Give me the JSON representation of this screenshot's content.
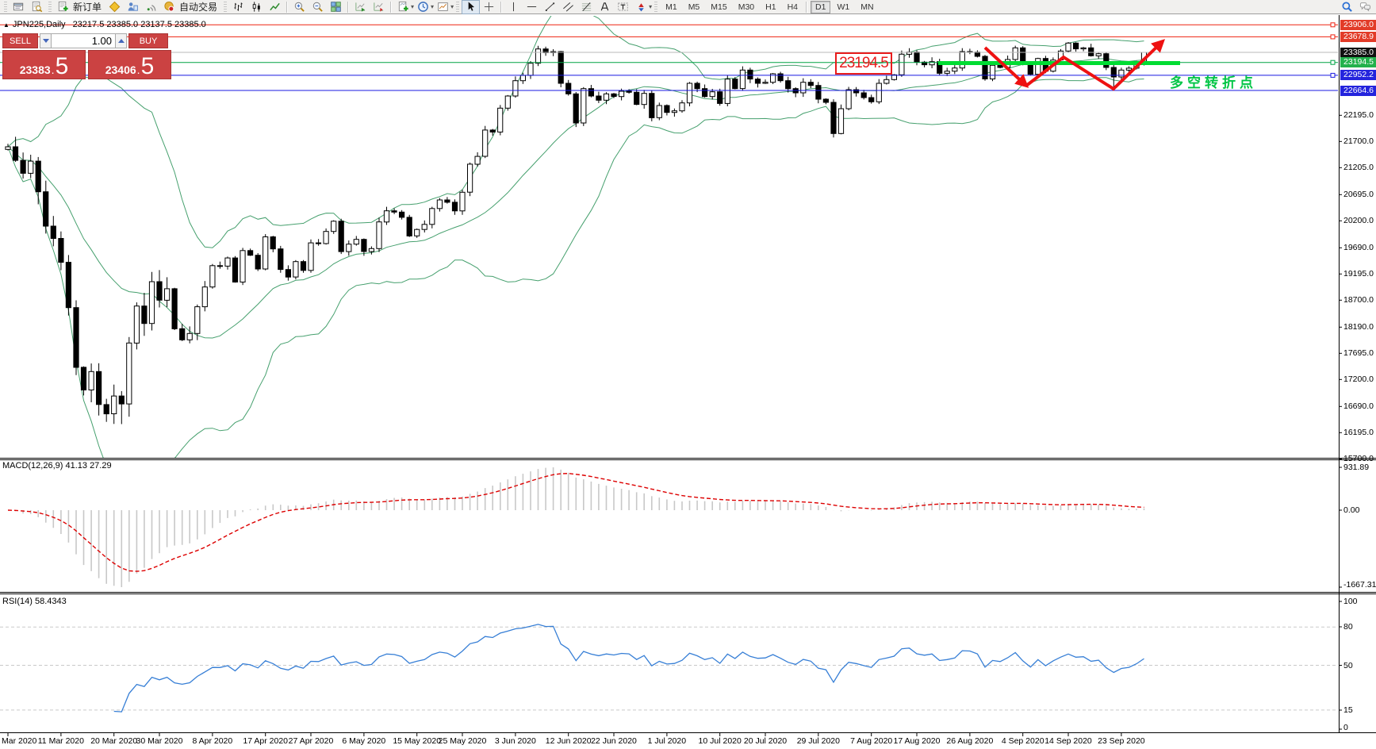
{
  "toolbar": {
    "items": [
      {
        "type": "grip"
      },
      {
        "type": "btn",
        "icon": "chart-list"
      },
      {
        "type": "btn",
        "icon": "print-preview"
      },
      {
        "type": "grip"
      },
      {
        "type": "btn",
        "icon": "new-order",
        "label": "新订单"
      },
      {
        "type": "btn",
        "icon": "metaeditor"
      },
      {
        "type": "btn",
        "icon": "terminal"
      },
      {
        "type": "btn",
        "icon": "signals"
      },
      {
        "type": "btn",
        "icon": "autotrading",
        "label": "自动交易"
      },
      {
        "type": "grip"
      },
      {
        "type": "btn",
        "icon": "bars-chart"
      },
      {
        "type": "btn",
        "icon": "candles-chart"
      },
      {
        "type": "btn",
        "icon": "line-chart"
      },
      {
        "type": "sep"
      },
      {
        "type": "btn",
        "icon": "zoom-in"
      },
      {
        "type": "btn",
        "icon": "zoom-out"
      },
      {
        "type": "btn",
        "icon": "tile-windows"
      },
      {
        "type": "sep"
      },
      {
        "type": "btn",
        "icon": "auto-scroll"
      },
      {
        "type": "btn",
        "icon": "chart-shift"
      },
      {
        "type": "sep"
      },
      {
        "type": "btn",
        "icon": "new-chart",
        "dropdown": true
      },
      {
        "type": "btn",
        "icon": "period",
        "dropdown": true
      },
      {
        "type": "btn",
        "icon": "templates",
        "dropdown": true
      },
      {
        "type": "grip"
      },
      {
        "type": "btn",
        "icon": "cursor",
        "active": true
      },
      {
        "type": "btn",
        "icon": "crosshair"
      },
      {
        "type": "sep"
      },
      {
        "type": "btn",
        "icon": "vline"
      },
      {
        "type": "btn",
        "icon": "hline"
      },
      {
        "type": "btn",
        "icon": "trendline"
      },
      {
        "type": "btn",
        "icon": "channel"
      },
      {
        "type": "btn",
        "icon": "fibonacci"
      },
      {
        "type": "btn",
        "icon": "text"
      },
      {
        "type": "btn",
        "icon": "text-label"
      },
      {
        "type": "btn",
        "icon": "arrows",
        "dropdown": true
      },
      {
        "type": "grip"
      },
      {
        "type": "timeframes"
      },
      {
        "type": "spacer"
      },
      {
        "type": "btn",
        "icon": "search"
      },
      {
        "type": "btn",
        "icon": "chat"
      }
    ],
    "timeframes": [
      "M1",
      "M5",
      "M15",
      "M30",
      "H1",
      "H4",
      "D1",
      "W1",
      "MN"
    ],
    "timeframe_separator_before": "D1",
    "selected_timeframe": "D1"
  },
  "chart_header": {
    "collapse_glyph": "▲",
    "title": "JPN225,Daily",
    "ohlc": "23217.5 23385.0 23137.5 23385.0"
  },
  "trade_panel": {
    "sell_label": "SELL",
    "buy_label": "BUY",
    "volume": "1.00",
    "sell_price_main": "23383",
    "sell_price_frac": "5",
    "buy_price_main": "23406",
    "buy_price_frac": "5",
    "accent_color": "#cb4242"
  },
  "annotations": {
    "price_box_label": "23194.5",
    "turning_point_text": "多空转折点",
    "turning_point_color": "#00c545",
    "trend_segment_color": "#00dc32",
    "zigzag_color": "#ee1111"
  },
  "macd_panel": {
    "name": "MACD(12,26,9)",
    "values": "41.13 27.29",
    "scale": [
      "931.89",
      "0.00",
      "-1667.31"
    ],
    "histogram_color": "#c8c8c8",
    "signal_color": "#dd0000"
  },
  "rsi_panel": {
    "name": "RSI(14)",
    "value": "58.4343",
    "scale": [
      "100",
      "80",
      "50",
      "15",
      "0"
    ],
    "line_color": "#377fd6"
  },
  "chart_data": {
    "type": "candlestick",
    "symbol": "JPN225",
    "timeframe": "Daily",
    "bollinger_color": "#46a06e",
    "first_open": 21550,
    "closes": [
      21600,
      21344,
      21100,
      21329,
      20750,
      20100,
      19867,
      19416,
      18560,
      17431,
      17002,
      17350,
      16727,
      16552,
      16888,
      16738,
      17890,
      18590,
      18260,
      19050,
      18700,
      18917,
      18160,
      17950,
      18070,
      18576,
      18950,
      19353,
      19345,
      19499,
      19043,
      19638,
      19550,
      19290,
      19897,
      19669,
      19280,
      19138,
      19429,
      19262,
      19783,
      19771,
      20000,
      20193,
      19619,
      19760,
      19850,
      19620,
      19675,
      20179,
      20390,
      20366,
      20267,
      19915,
      20037,
      20133,
      20433,
      20595,
      20552,
      20388,
      20741,
      21271,
      21419,
      21916,
      21878,
      22330,
      22560,
      22850,
      22950,
      23180,
      23450,
      23380,
      23400,
      22800,
      22600,
      22050,
      22700,
      22560,
      22480,
      22600,
      22550,
      22650,
      22630,
      22400,
      22610,
      22150,
      22380,
      22250,
      22280,
      22430,
      22800,
      22700,
      22550,
      22640,
      22420,
      22880,
      22700,
      23050,
      22880,
      22800,
      22820,
      22980,
      22850,
      22700,
      22620,
      22820,
      22760,
      22500,
      22440,
      21850,
      22320,
      22680,
      22620,
      22530,
      22450,
      22800,
      22870,
      22960,
      23350,
      23390,
      23200,
      23150,
      23210,
      22990,
      23030,
      23090,
      23400,
      23390,
      23310,
      22882,
      23140,
      23100,
      23250,
      23470,
      23200,
      22970,
      23270,
      23030,
      23240,
      23410,
      23560,
      23450,
      23470,
      23320,
      23360,
      23100,
      22920,
      23050,
      23087,
      23204,
      23385
    ],
    "wick_overrides": {
      "13": {
        "low": 16400
      },
      "15": {
        "low": 16358
      },
      "70": {
        "high": 23510
      },
      "140": {
        "high": 23580
      },
      "146": {
        "low": 22704
      },
      "150": {
        "open": 23217,
        "high": 23385,
        "low": 23137
      }
    },
    "hlines": [
      {
        "price": 23906.0,
        "label": "23906.0",
        "line_color": "#ee2211",
        "badge_bg": "#e23b28",
        "handle": true
      },
      {
        "price": 23678.9,
        "label": "23678.9",
        "line_color": "#ee2211",
        "badge_bg": "#e23b28",
        "handle": true
      },
      {
        "price": 23385.0,
        "label": "23385.0",
        "line_color": "#b9b9b9",
        "badge_bg": "#111111",
        "handle": false
      },
      {
        "price": 23194.5,
        "label": "23194.5",
        "line_color": "#00a344",
        "badge_bg": "#22b14c",
        "handle": true
      },
      {
        "price": 22952.2,
        "label": "22952.2",
        "line_color": "#1818e0",
        "badge_bg": "#2424dd",
        "handle": true
      },
      {
        "price": 22664.6,
        "label": "22664.6",
        "line_color": "#1818e0",
        "badge_bg": "#2424dd",
        "handle": false
      }
    ],
    "price_axis_ticks": [
      "22195.0",
      "21700.0",
      "21205.0",
      "20695.0",
      "20200.0",
      "19690.0",
      "19195.0",
      "18700.0",
      "18190.0",
      "17695.0",
      "17200.0",
      "16690.0",
      "16195.0",
      "15700.0"
    ],
    "rsi_dashed_levels": [
      80,
      50,
      15
    ],
    "x_ticks": [
      {
        "i": 0,
        "label": "Mar 2020"
      },
      {
        "i": 7,
        "label": "11 Mar 2020"
      },
      {
        "i": 14,
        "label": "20 Mar 2020"
      },
      {
        "i": 20,
        "label": "30 Mar 2020"
      },
      {
        "i": 27,
        "label": "8 Apr 2020"
      },
      {
        "i": 34,
        "label": "17 Apr 2020"
      },
      {
        "i": 40,
        "label": "27 Apr 2020"
      },
      {
        "i": 47,
        "label": "6 May 2020"
      },
      {
        "i": 54,
        "label": "15 May 2020"
      },
      {
        "i": 60,
        "label": "25 May 2020"
      },
      {
        "i": 67,
        "label": "3 Jun 2020"
      },
      {
        "i": 74,
        "label": "12 Jun 2020"
      },
      {
        "i": 80,
        "label": "22 Jun 2020"
      },
      {
        "i": 87,
        "label": "1 Jul 2020"
      },
      {
        "i": 94,
        "label": "10 Jul 2020"
      },
      {
        "i": 100,
        "label": "20 Jul 2020"
      },
      {
        "i": 107,
        "label": "29 Jul 2020"
      },
      {
        "i": 114,
        "label": "7 Aug 2020"
      },
      {
        "i": 120,
        "label": "17 Aug 2020"
      },
      {
        "i": 127,
        "label": "26 Aug 2020"
      },
      {
        "i": 134,
        "label": "4 Sep 2020"
      },
      {
        "i": 140,
        "label": "14 Sep 2020"
      },
      {
        "i": 147,
        "label": "23 Sep 2020"
      }
    ]
  }
}
